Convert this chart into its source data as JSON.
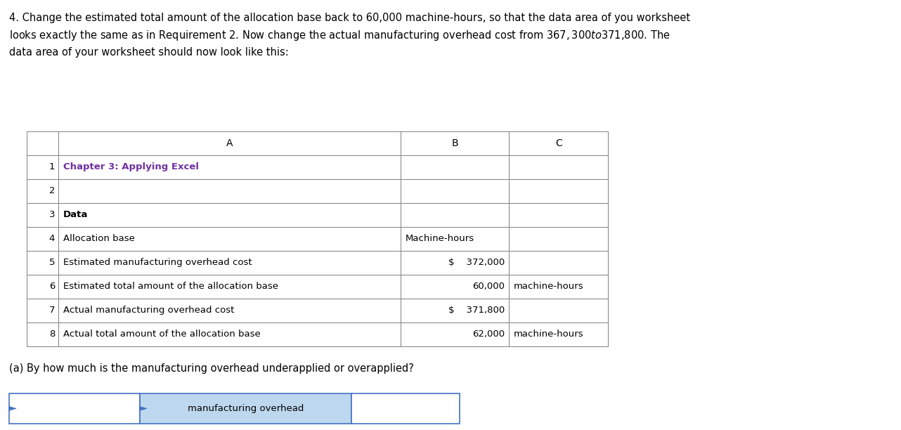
{
  "title_text": "4. Change the estimated total amount of the allocation base back to 60,000 machine-hours, so that the data area of you worksheet\nlooks exactly the same as in Requirement 2. Now change the actual manufacturing overhead cost from $367,300 to $371,800. The\ndata area of your worksheet should now look like this:",
  "col_headers": [
    "A",
    "B",
    "C"
  ],
  "row_numbers": [
    "1",
    "2",
    "3",
    "4",
    "5",
    "6",
    "7",
    "8"
  ],
  "rows": [
    [
      "Chapter 3: Applying Excel",
      "",
      ""
    ],
    [
      "",
      "",
      ""
    ],
    [
      "Data",
      "",
      ""
    ],
    [
      "Allocation base",
      "Machine-hours",
      ""
    ],
    [
      "Estimated manufacturing overhead cost",
      "$    372,000",
      ""
    ],
    [
      "Estimated total amount of the allocation base",
      "60,000",
      "machine-hours"
    ],
    [
      "Actual manufacturing overhead cost",
      "$    371,800",
      ""
    ],
    [
      "Actual total amount of the allocation base",
      "62,000",
      "machine-hours"
    ]
  ],
  "chapter_color": "#7030A0",
  "bold_rows": [
    0,
    2
  ],
  "question_a": "(a) By how much is the manufacturing overhead underapplied or overapplied?",
  "tab_label": "manufacturing overhead",
  "tab_bg": "#BDD7EE",
  "tab_border": "#4472C4",
  "background": "#FFFFFF"
}
